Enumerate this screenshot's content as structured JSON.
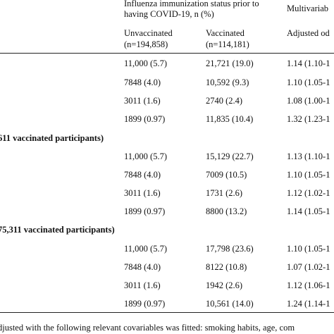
{
  "header": {
    "group_line1": "Influenza immunization status prior to",
    "group_line2": "having COVID-19, n (%)",
    "multivariable": "Multivariab",
    "unvaccinated_label": "Unvaccinated",
    "unvaccinated_n": "(n=194,858)",
    "vaccinated_label": "Vaccinated",
    "vaccinated_n": "(n=114,181)",
    "adjusted": "Adjusted od"
  },
  "sections": [
    {
      "title": "",
      "rows": [
        {
          "unvac": "11,000 (5.7)",
          "vac": "21,721 (19.0)",
          "adj": "1.14 (1.10-1"
        },
        {
          "unvac": "7848 (4.0)",
          "vac": "10,592 (9.3)",
          "adj": "1.10 (1.05-1"
        },
        {
          "unvac": "3011 (1.6)",
          "vac": "2740 (2.4)",
          "adj": "1.08 (1.00-1"
        },
        {
          "unvac": "1899 (0.97)",
          "vac": "11,835 (10.4)",
          "adj": "1.32 (1.23-1"
        }
      ]
    },
    {
      "title": "611 vaccinated participants)",
      "rows": [
        {
          "unvac": "11,000 (5.7)",
          "vac": "15,129 (22.7)",
          "adj": "1.13 (1.10-1"
        },
        {
          "unvac": "7848 (4.0)",
          "vac": "7009 (10.5)",
          "adj": "1.10 (1.05-1"
        },
        {
          "unvac": "3011 (1.6)",
          "vac": "1731 (2.6)",
          "adj": "1.12 (1.02-1"
        },
        {
          "unvac": "1899 (0.97)",
          "vac": "8800 (13.2)",
          "adj": "1.14 (1.05-1"
        }
      ]
    },
    {
      "title": "75,311 vaccinated participants)",
      "rows": [
        {
          "unvac": "11,000 (5.7)",
          "vac": "17,798 (23.6)",
          "adj": "1.10 (1.05-1"
        },
        {
          "unvac": "7848 (4.0)",
          "vac": "8122 (10.8)",
          "adj": "1.07 (1.02-1"
        },
        {
          "unvac": "3011 (1.6)",
          "vac": "1942 (2.6)",
          "adj": "1.12 (1.06-1"
        },
        {
          "unvac": "1899 (0.97)",
          "vac": "10,561 (14.0)",
          "adj": "1.24 (1.14-1"
        }
      ]
    }
  ],
  "footnote": "djusted with the following relevant covariables was fitted: smoking habits, age, com"
}
